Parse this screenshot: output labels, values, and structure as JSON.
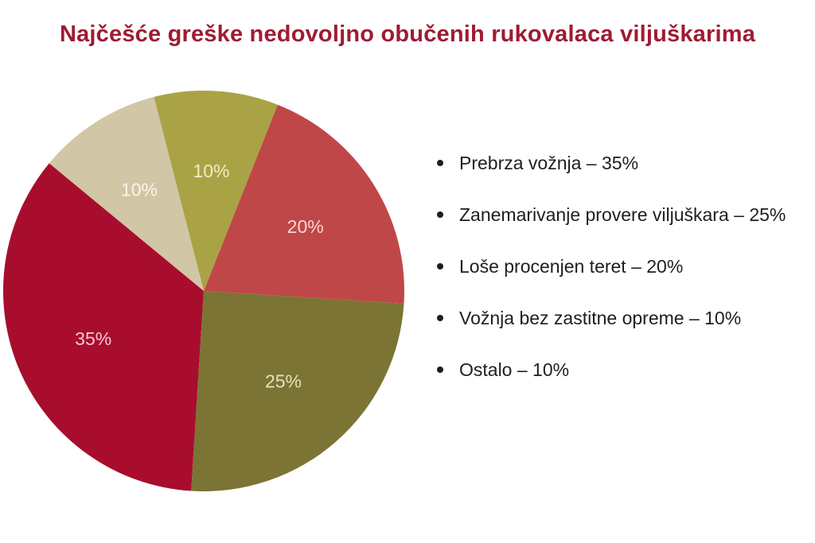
{
  "title": "Najčešće greške nedovoljno obučenih rukovalaca viljuškarima",
  "colors": {
    "background": "#ffffff",
    "title": "#9e1b33",
    "legend_text": "#1e1e1e",
    "legend_bullet": "#1e1e1e"
  },
  "chart_data": {
    "type": "pie",
    "title": "Najčešće greške nedovoljno obučenih rukovalaca viljuškarima",
    "legend_position": "right",
    "labels_inside": true,
    "direction": "counterclockwise",
    "start_angle_deg_clockwise_from_top": 309.6,
    "label_radius_fraction": 0.6,
    "slices": [
      {
        "label": "Prebrza vožnja",
        "value": 35,
        "display_label": "35%",
        "color": "#a80d2e",
        "label_color": "#f2c9d2",
        "legend_text": "Prebrza vožnja – 35%"
      },
      {
        "label": "Zanemarivanje provere viljuškara",
        "value": 25,
        "display_label": "25%",
        "color": "#7b7434",
        "label_color": "#e9e2ba",
        "legend_text": "Zanemarivanje provere viljuškara – 25%"
      },
      {
        "label": "Loše procenjen teret",
        "value": 20,
        "display_label": "20%",
        "color": "#c04747",
        "label_color": "#f6d7d7",
        "legend_text": "Loše procenjen teret – 20%"
      },
      {
        "label": "Vožnja bez zastitne opreme",
        "value": 10,
        "display_label": "10%",
        "color": "#a9a346",
        "label_color": "#f0ecca",
        "legend_text": "Vožnja bez zastitne opreme – 10%"
      },
      {
        "label": "Ostalo",
        "value": 10,
        "display_label": "10%",
        "color": "#d1c6a5",
        "label_color": "#f9f6ec",
        "legend_text": "Ostalo – 10%"
      }
    ]
  }
}
